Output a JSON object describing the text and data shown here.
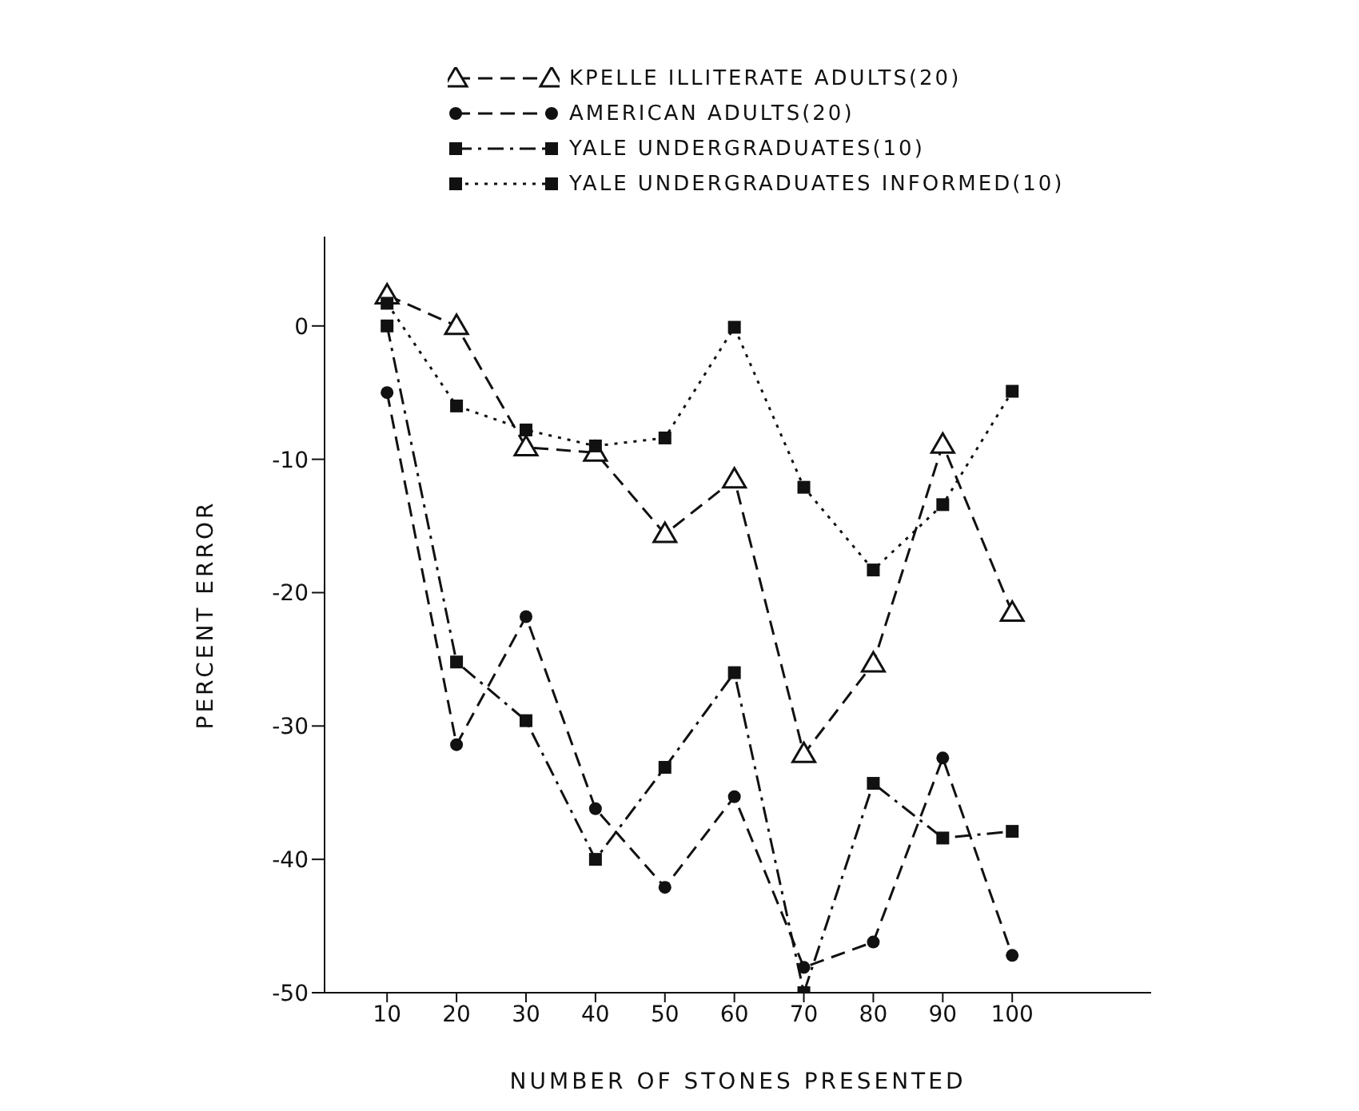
{
  "chart_data": {
    "type": "line",
    "xlabel": "NUMBER OF STONES PRESENTED",
    "ylabel": "PERCENT ERROR",
    "x": [
      10,
      20,
      30,
      40,
      50,
      60,
      70,
      80,
      90,
      100
    ],
    "series": [
      {
        "name": "KPELLE ILLITERATE ADULTS(20)",
        "color": "#111111",
        "marker": "triangle",
        "line_style": "dashed",
        "values": [
          2.3,
          0,
          -9.1,
          -9.5,
          -15.6,
          -11.5,
          -32.1,
          -25.3,
          -8.9,
          -21.5
        ]
      },
      {
        "name": "AMERICAN ADULTS(20)",
        "color": "#111111",
        "marker": "circle",
        "line_style": "dashed",
        "values": [
          -5,
          -31.4,
          -21.8,
          -36.2,
          -42.1,
          -35.3,
          -48.1,
          -46.2,
          -32.4,
          -47.2
        ]
      },
      {
        "name": "YALE UNDERGRADUATES(10)",
        "color": "#111111",
        "marker": "square",
        "line_style": "dashdot",
        "values": [
          0,
          -25.2,
          -29.6,
          -40,
          -33.1,
          -26,
          -50,
          -34.3,
          -38.4,
          -37.9
        ]
      },
      {
        "name": "YALE UNDERGRADUATES INFORMED(10)",
        "color": "#111111",
        "marker": "square",
        "line_style": "dotted",
        "values": [
          1.7,
          -6,
          -7.8,
          -9,
          -8.4,
          -0.1,
          -12.1,
          -18.3,
          -13.4,
          -4.9
        ]
      }
    ],
    "xlim": [
      1,
      120
    ],
    "xticks": [
      10,
      20,
      30,
      40,
      50,
      60,
      70,
      80,
      90,
      100
    ],
    "ylim": [
      -50,
      6.7
    ],
    "yticks": [
      -50,
      -40,
      -30,
      -20,
      -10,
      0
    ],
    "grid": false,
    "legend": "top right"
  }
}
